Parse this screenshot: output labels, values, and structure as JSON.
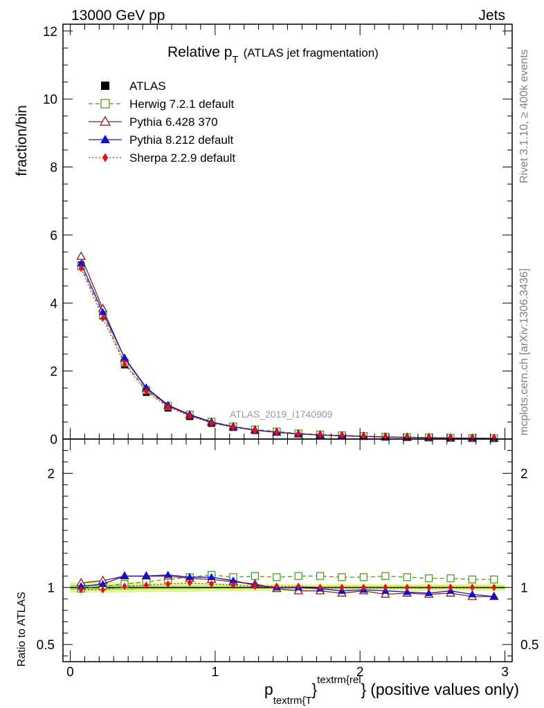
{
  "header": {
    "energy": "13000 GeV pp",
    "category": "Jets"
  },
  "side": {
    "rivet": "Rivet 3.1.10, ≥ 400k events",
    "mcplots": "mcplots.cern.ch [arXiv:1306.3436]"
  },
  "chart_data": {
    "type": "line",
    "title": "Relative p",
    "title_sub": "T",
    "title_suffix": "(ATLAS jet fragmentation)",
    "watermark": "ATLAS_2019_I1740909",
    "ylabel": "fraction/bin",
    "ratio_ylabel": "Ratio to ATLAS",
    "xlabel": {
      "p": "p",
      "sub": "textrm{T",
      "brace1": "}",
      "sup": "textrm{rel",
      "brace2": "}",
      "suffix": "(positive values only)"
    },
    "xlim": [
      -0.05,
      3.05
    ],
    "ylim": [
      0,
      12.2
    ],
    "ratio_ylim": [
      0.35,
      2.3
    ],
    "x_ticks": [
      "0",
      "1",
      "2",
      "3"
    ],
    "y_ticks": [
      "0",
      "2",
      "4",
      "6",
      "8",
      "10",
      "12"
    ],
    "ratio_ticks": [
      "0.5",
      "1",
      "2"
    ],
    "x": [
      0.075,
      0.225,
      0.375,
      0.525,
      0.675,
      0.825,
      0.975,
      1.125,
      1.275,
      1.425,
      1.575,
      1.725,
      1.875,
      2.025,
      2.175,
      2.325,
      2.475,
      2.625,
      2.775,
      2.925
    ],
    "data": {
      "name": "ATLAS",
      "values": [
        5.12,
        3.62,
        2.18,
        1.37,
        0.91,
        0.66,
        0.46,
        0.34,
        0.25,
        0.2,
        0.15,
        0.12,
        0.1,
        0.08,
        0.06,
        0.05,
        0.04,
        0.03,
        0.025,
        0.02
      ]
    },
    "ratio_band": {
      "inner": [
        0.02,
        0.02,
        0.02,
        0.015,
        0.015,
        0.015,
        0.012,
        0.012,
        0.012,
        0.012,
        0.012,
        0.012,
        0.012,
        0.012,
        0.012,
        0.012,
        0.012,
        0.012,
        0.012,
        0.012
      ],
      "outer": [
        0.045,
        0.045,
        0.045,
        0.04,
        0.04,
        0.04,
        0.035,
        0.035,
        0.03,
        0.03,
        0.03,
        0.03,
        0.03,
        0.03,
        0.03,
        0.03,
        0.03,
        0.03,
        0.03,
        0.03
      ]
    },
    "series": [
      {
        "name": "Herwig 7.2.1 default",
        "color": "#4c9a1a",
        "marker": "open-square",
        "dash": "6,4",
        "values": [
          5.08,
          3.65,
          2.25,
          1.44,
          0.97,
          0.72,
          0.51,
          0.37,
          0.28,
          0.22,
          0.166,
          0.131,
          0.109,
          0.087,
          0.066,
          0.055,
          0.0436,
          0.0327,
          0.0272,
          0.0216
        ],
        "ratio": [
          0.99,
          1.01,
          1.03,
          1.05,
          1.07,
          1.09,
          1.11,
          1.09,
          1.1,
          1.09,
          1.1,
          1.1,
          1.09,
          1.09,
          1.1,
          1.09,
          1.08,
          1.08,
          1.07,
          1.07
        ]
      },
      {
        "name": "Pythia 6.428 370",
        "color": "#8b1a1a",
        "marker": "open-triangle",
        "dash": "",
        "values": [
          5.37,
          3.83,
          2.37,
          1.49,
          0.98,
          0.7,
          0.49,
          0.356,
          0.26,
          0.198,
          0.146,
          0.117,
          0.095,
          0.0776,
          0.057,
          0.0475,
          0.0376,
          0.0285,
          0.023,
          0.0184
        ],
        "ratio": [
          1.04,
          1.06,
          1.1,
          1.1,
          1.1,
          1.08,
          1.07,
          1.05,
          1.03,
          0.99,
          0.97,
          0.97,
          0.95,
          0.97,
          0.94,
          0.95,
          0.94,
          0.95,
          0.92,
          0.92
        ]
      },
      {
        "name": "Pythia 8.212 default",
        "color": "#1010d0",
        "marker": "filled-triangle",
        "dash": "",
        "values": [
          5.16,
          3.73,
          2.39,
          1.51,
          1.0,
          0.72,
          0.5,
          0.36,
          0.264,
          0.2,
          0.152,
          0.12,
          0.097,
          0.0784,
          0.0582,
          0.048,
          0.038,
          0.029,
          0.0235,
          0.0184
        ],
        "ratio": [
          1.01,
          1.03,
          1.1,
          1.1,
          1.11,
          1.09,
          1.09,
          1.06,
          1.02,
          1.0,
          1.0,
          0.99,
          0.97,
          0.98,
          0.97,
          0.96,
          0.95,
          0.97,
          0.94,
          0.92
        ]
      },
      {
        "name": "Sherpa 2.2.9 default",
        "color": "#e8100f",
        "marker": "filled-diamond",
        "dash": "2,3",
        "values": [
          5.02,
          3.55,
          2.2,
          1.4,
          0.94,
          0.68,
          0.47,
          0.35,
          0.255,
          0.203,
          0.153,
          0.121,
          0.101,
          0.081,
          0.061,
          0.05,
          0.04,
          0.03,
          0.025,
          0.02
        ],
        "ratio": [
          0.98,
          0.98,
          1.01,
          1.02,
          1.03,
          1.04,
          1.03,
          1.02,
          1.01,
          1.01,
          1.01,
          1.0,
          1.0,
          1.0,
          1.0,
          1.0,
          1.0,
          1.0,
          1.0,
          1.0
        ]
      }
    ]
  }
}
